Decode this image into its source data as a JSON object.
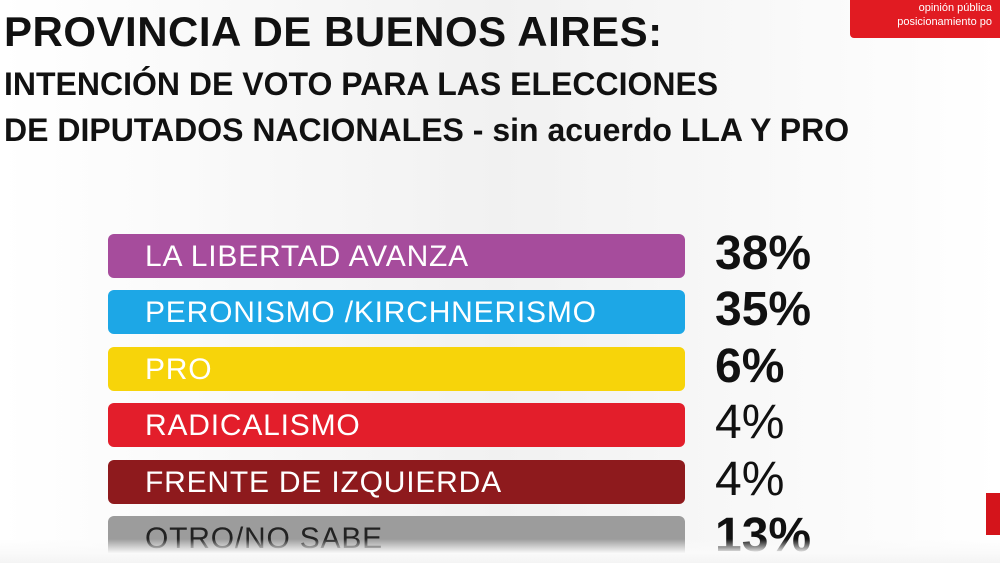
{
  "header": {
    "title": "PROVINCIA DE BUENOS AIRES:",
    "subtitle_line1": "INTENCIÓN DE VOTO PARA LAS ELECCIONES",
    "subtitle_line2": "DE DIPUTADOS NACIONALES - sin acuerdo LLA Y PRO"
  },
  "brand": {
    "line1": "opinión pública",
    "line2": "posicionamiento po",
    "color": "#e11b22"
  },
  "chart_data": {
    "type": "bar",
    "orientation": "horizontal",
    "title": "PROVINCIA DE BUENOS AIRES:",
    "subtitle": "INTENCIÓN DE VOTO PARA LAS ELECCIONES DE DIPUTADOS NACIONALES - sin acuerdo LLA Y PRO",
    "categories": [
      "LA LIBERTAD AVANZA",
      "PERONISMO /KIRCHNERISMO",
      "PRO",
      "RADICALISMO",
      "FRENTE DE IZQUIERDA",
      "OTRO/NO SABE"
    ],
    "values": [
      38,
      35,
      6,
      4,
      4,
      13
    ],
    "value_labels": [
      "38%",
      "35%",
      "6%",
      "4%",
      "4%",
      "13%"
    ],
    "unit": "%",
    "colors": [
      "#a64c9c",
      "#1da7e6",
      "#f7d40a",
      "#e31e2b",
      "#8e1a1d",
      "#9c9c9c"
    ],
    "label_colors": [
      "#ffffff",
      "#ffffff",
      "#ffffff",
      "#ffffff",
      "#ffffff",
      "#222222"
    ],
    "legend": "none",
    "grid": false
  }
}
